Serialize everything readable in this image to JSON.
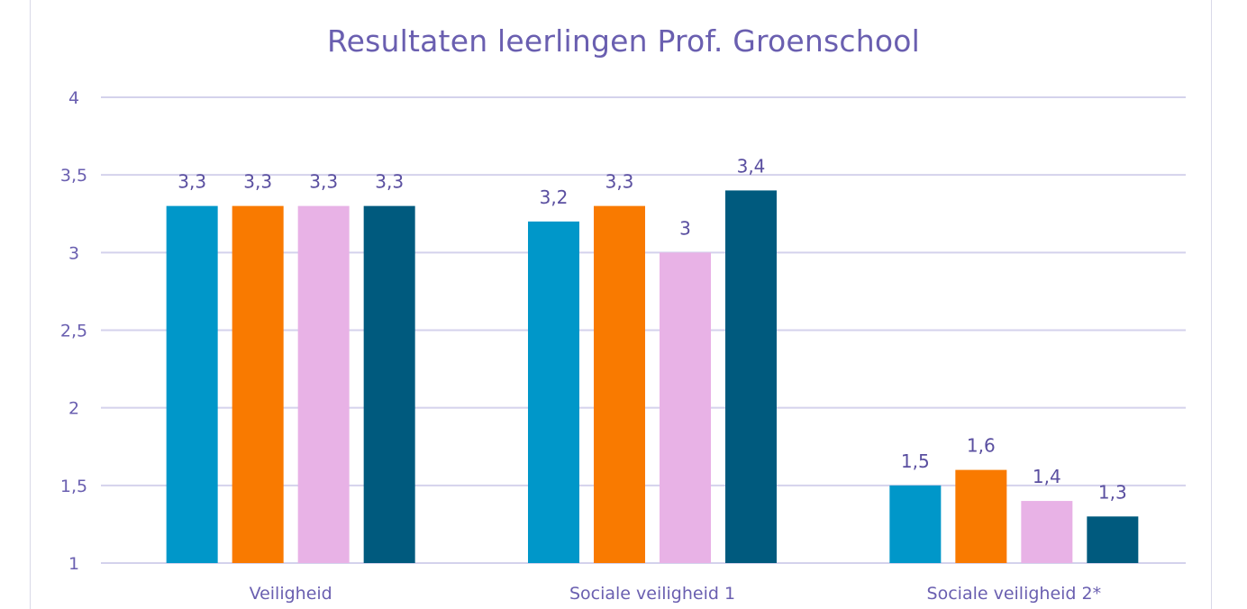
{
  "chart_data": {
    "type": "bar",
    "title": "Resultaten leerlingen Prof. Groenschool",
    "xlabel": "",
    "ylabel": "",
    "ylim": [
      1,
      4
    ],
    "yticks": [
      "1",
      "1,5",
      "2",
      "2,5",
      "3",
      "3,5",
      "4"
    ],
    "ytick_values": [
      1,
      1.5,
      2,
      2.5,
      3,
      3.5,
      4
    ],
    "grid": true,
    "legend": "none",
    "categories": [
      "Veiligheid",
      "Sociale veiligheid 1",
      "Sociale veiligheid 2*"
    ],
    "series": [
      {
        "color": "#0097c9",
        "values": [
          3.3,
          3.2,
          1.5
        ],
        "labels": [
          "3,3",
          "3,2",
          "1,5"
        ]
      },
      {
        "color": "#f97a00",
        "values": [
          3.3,
          3.3,
          1.6
        ],
        "labels": [
          "3,3",
          "3,3",
          "1,6"
        ]
      },
      {
        "color": "#e8b2e6",
        "values": [
          3.3,
          3.0,
          1.4
        ],
        "labels": [
          "3,3",
          "3",
          "1,4"
        ]
      },
      {
        "color": "#005a7e",
        "values": [
          3.3,
          3.4,
          1.3
        ],
        "labels": [
          "3,3",
          "3,4",
          "1,3"
        ]
      }
    ],
    "gridline_color": "#d4d2ec"
  }
}
